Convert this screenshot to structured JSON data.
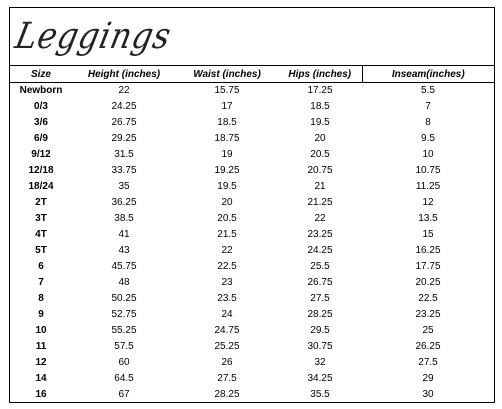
{
  "title": "Leggings",
  "headers": [
    "Size",
    "Height (inches)",
    "Waist (inches)",
    "Hips (inches)",
    "Inseam(inches)"
  ],
  "rows": [
    [
      "Newborn",
      "22",
      "15.75",
      "17.25",
      "5.5"
    ],
    [
      "0/3",
      "24.25",
      "17",
      "18.5",
      "7"
    ],
    [
      "3/6",
      "26.75",
      "18.5",
      "19.5",
      "8"
    ],
    [
      "6/9",
      "29.25",
      "18.75",
      "20",
      "9.5"
    ],
    [
      "9/12",
      "31.5",
      "19",
      "20.5",
      "10"
    ],
    [
      "12/18",
      "33.75",
      "19.25",
      "20.75",
      "10.75"
    ],
    [
      "18/24",
      "35",
      "19.5",
      "21",
      "11.25"
    ],
    [
      "2T",
      "36.25",
      "20",
      "21.25",
      "12"
    ],
    [
      "3T",
      "38.5",
      "20.5",
      "22",
      "13.5"
    ],
    [
      "4T",
      "41",
      "21.5",
      "23.25",
      "15"
    ],
    [
      "5T",
      "43",
      "22",
      "24.25",
      "16.25"
    ],
    [
      "6",
      "45.75",
      "22.5",
      "25.5",
      "17.75"
    ],
    [
      "7",
      "48",
      "23",
      "26.75",
      "20.25"
    ],
    [
      "8",
      "50.25",
      "23.5",
      "27.5",
      "22.5"
    ],
    [
      "9",
      "52.75",
      "24",
      "28.25",
      "23.25"
    ],
    [
      "10",
      "55.25",
      "24.75",
      "29.5",
      "25"
    ],
    [
      "11",
      "57.5",
      "25.25",
      "30.75",
      "26.25"
    ],
    [
      "12",
      "60",
      "26",
      "32",
      "27.5"
    ],
    [
      "14",
      "64.5",
      "27.5",
      "34.25",
      "29"
    ],
    [
      "16",
      "67",
      "28.25",
      "35.5",
      "30"
    ]
  ]
}
